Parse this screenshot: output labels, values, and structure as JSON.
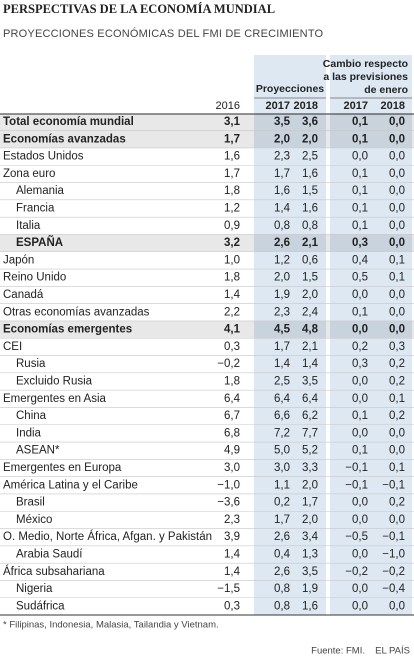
{
  "header": {
    "title": "PERSPECTIVAS DE LA ECONOMÍA MUNDIAL",
    "subtitle": "PROYECCIONES ECONÓMICAS DEL FMI DE CRECIMIENTO"
  },
  "table": {
    "group_projections": "Proyecciones",
    "group_change": [
      "Cambio respecto",
      "a las previsiones",
      "de enero"
    ],
    "years": [
      "2016",
      "2017",
      "2018",
      "2017",
      "2018"
    ],
    "rows": [
      [
        "Total economía mundial",
        "3,1",
        "3,5",
        "3,6",
        "0,1",
        "0,0"
      ],
      [
        "Economías avanzadas",
        "1,7",
        "2,0",
        "2,0",
        "0,1",
        "0,0"
      ],
      [
        "Estados Unidos",
        "1,6",
        "2,3",
        "2,5",
        "0,0",
        "0,0"
      ],
      [
        "Zona euro",
        "1,7",
        "1,7",
        "1,6",
        "0,1",
        "0,0"
      ],
      [
        "Alemania",
        "1,8",
        "1,6",
        "1,5",
        "0,1",
        "0,0"
      ],
      [
        "Francia",
        "1,2",
        "1,4",
        "1,6",
        "0,1",
        "0,0"
      ],
      [
        "Italia",
        "0,9",
        "0,8",
        "0,8",
        "0,1",
        "0,0"
      ],
      [
        "ESPAÑA",
        "3,2",
        "2,6",
        "2,1",
        "0,3",
        "0,0"
      ],
      [
        "Japón",
        "1,0",
        "1,2",
        "0,6",
        "0,4",
        "0,1"
      ],
      [
        "Reino Unido",
        "1,8",
        "2,0",
        "1,5",
        "0,5",
        "0,1"
      ],
      [
        "Canadá",
        "1,4",
        "1,9",
        "2,0",
        "0,0",
        "0,0"
      ],
      [
        "Otras economías avanzadas",
        "2,2",
        "2,3",
        "2,4",
        "0,1",
        "0,0"
      ],
      [
        "Economías emergentes",
        "4,1",
        "4,5",
        "4,8",
        "0,0",
        "0,0"
      ],
      [
        "CEI",
        "0,3",
        "1,7",
        "2,1",
        "0,2",
        "0,3"
      ],
      [
        "Rusia",
        "−0,2",
        "1,4",
        "1,4",
        "0,3",
        "0,2"
      ],
      [
        "Excluido Rusia",
        "1,8",
        "2,5",
        "3,5",
        "0,0",
        "0,2"
      ],
      [
        "Emergentes en Asia",
        "6,4",
        "6,4",
        "6,4",
        "0,0",
        "0,1"
      ],
      [
        "China",
        "6,7",
        "6,6",
        "6,2",
        "0,1",
        "0,2"
      ],
      [
        "India",
        "6,8",
        "7,2",
        "7,7",
        "0,0",
        "0,0"
      ],
      [
        "ASEAN*",
        "4,9",
        "5,0",
        "5,2",
        "0,1",
        "0,0"
      ],
      [
        "Emergentes en Europa",
        "3,0",
        "3,0",
        "3,3",
        "−0,1",
        "0,1"
      ],
      [
        "América Latina y el Caribe",
        "−1,0",
        "1,1",
        "2,0",
        "−0,1",
        "−0,1"
      ],
      [
        "Brasil",
        "−3,6",
        "0,2",
        "1,7",
        "0,0",
        "0,2"
      ],
      [
        "México",
        "2,3",
        "1,7",
        "2,0",
        "0,0",
        "0,0"
      ],
      [
        "O. Medio, Norte África, Afgan. y Pakistán",
        "3,9",
        "2,6",
        "3,4",
        "−0,5",
        "−0,1"
      ],
      [
        "Arabia Saudí",
        "1,4",
        "0,4",
        "1,3",
        "0,0",
        "−1,0"
      ],
      [
        "África subsahariana",
        "1,4",
        "2,6",
        "3,5",
        "−0,2",
        "−0,2"
      ],
      [
        "Nigeria",
        "−1,5",
        "0,8",
        "1,9",
        "0,0",
        "−0,4"
      ],
      [
        "Sudáfrica",
        "0,3",
        "0,8",
        "1,6",
        "0,0",
        "0,0"
      ]
    ]
  },
  "footnote": "* Filipinas, Indonesia, Malasia, Tailandia y Vietnam.",
  "source": "Fuente: FMI.",
  "brand": "EL PAÍS"
}
